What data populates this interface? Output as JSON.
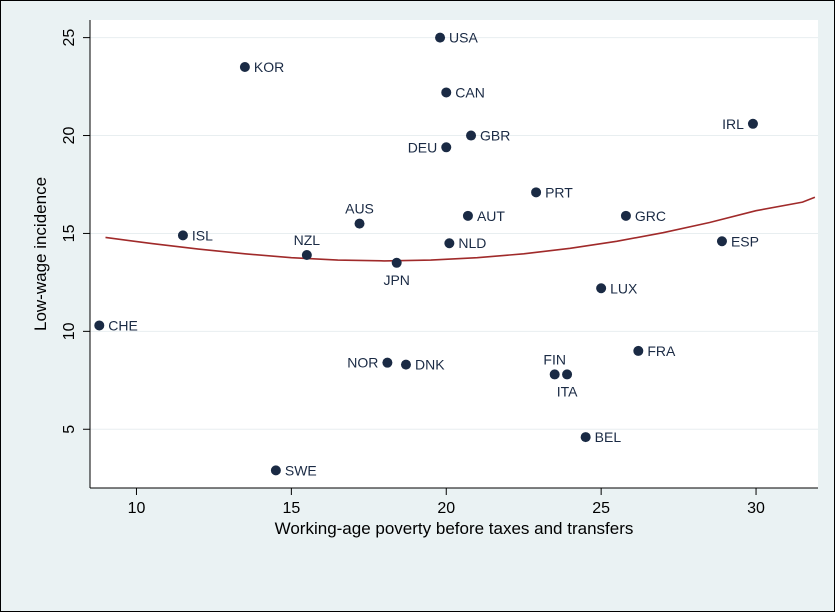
{
  "chart_data": {
    "type": "scatter",
    "title": "",
    "xlabel": "Working-age poverty before taxes and transfers",
    "ylabel": "Low-wage incidence",
    "xlim": [
      8.5,
      32
    ],
    "ylim": [
      2.0,
      25.9
    ],
    "xticks": [
      "10",
      "15",
      "20",
      "25",
      "30"
    ],
    "yticks": [
      "5",
      "10",
      "15",
      "20",
      "25"
    ],
    "grid": true,
    "legend": "none",
    "colors": {
      "background": "#eaf2f3",
      "plot_area": "#ffffff",
      "marker": "#1a2a44",
      "fit_line": "#a02a2a",
      "grid": "#e8eef0"
    },
    "points": [
      {
        "label": "USA",
        "x": 19.8,
        "y": 25.0
      },
      {
        "label": "KOR",
        "x": 13.5,
        "y": 23.5
      },
      {
        "label": "CAN",
        "x": 20.0,
        "y": 22.2
      },
      {
        "label": "IRL",
        "x": 29.9,
        "y": 20.6
      },
      {
        "label": "GBR",
        "x": 20.8,
        "y": 20.0
      },
      {
        "label": "DEU",
        "x": 20.0,
        "y": 19.4
      },
      {
        "label": "PRT",
        "x": 22.9,
        "y": 17.1
      },
      {
        "label": "AUS",
        "x": 17.2,
        "y": 15.5
      },
      {
        "label": "AUT",
        "x": 20.7,
        "y": 15.9
      },
      {
        "label": "GRC",
        "x": 25.8,
        "y": 15.9
      },
      {
        "label": "ISL",
        "x": 11.5,
        "y": 14.9
      },
      {
        "label": "NLD",
        "x": 20.1,
        "y": 14.5
      },
      {
        "label": "ESP",
        "x": 28.9,
        "y": 14.6
      },
      {
        "label": "NZL",
        "x": 15.5,
        "y": 13.9
      },
      {
        "label": "JPN",
        "x": 18.4,
        "y": 13.5
      },
      {
        "label": "LUX",
        "x": 25.0,
        "y": 12.2
      },
      {
        "label": "CHE",
        "x": 8.8,
        "y": 10.3
      },
      {
        "label": "FRA",
        "x": 26.2,
        "y": 9.0
      },
      {
        "label": "NOR",
        "x": 18.1,
        "y": 8.4
      },
      {
        "label": "DNK",
        "x": 18.7,
        "y": 8.3
      },
      {
        "label": "FIN",
        "x": 23.5,
        "y": 7.8
      },
      {
        "label": "ITA",
        "x": 23.9,
        "y": 7.8
      },
      {
        "label": "BEL",
        "x": 24.5,
        "y": 4.6
      },
      {
        "label": "SWE",
        "x": 14.5,
        "y": 2.9
      }
    ],
    "fit_curve": {
      "x": [
        9.0,
        10.5,
        12.0,
        13.5,
        15.0,
        16.5,
        18.0,
        19.5,
        21.0,
        22.5,
        24.0,
        25.5,
        27.0,
        28.5,
        30.0,
        31.5,
        31.9
      ],
      "y": [
        14.8,
        14.48,
        14.2,
        13.96,
        13.76,
        13.64,
        13.6,
        13.64,
        13.76,
        13.96,
        14.24,
        14.6,
        15.04,
        15.56,
        16.16,
        16.6,
        16.85
      ]
    }
  }
}
